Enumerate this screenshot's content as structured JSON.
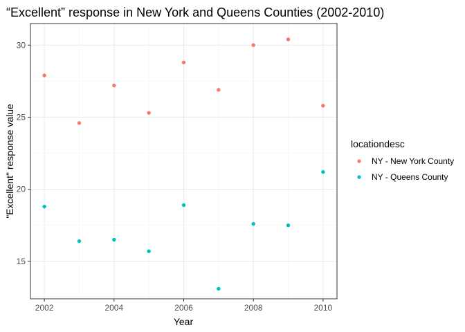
{
  "chart_data": {
    "type": "scatter",
    "title": "“Excellent” response in New York and Queens Counties (2002-2010)",
    "xlabel": "Year",
    "ylabel": "\"Excellent\" response value",
    "xlim": [
      2001.6,
      2010.4
    ],
    "ylim": [
      12.4,
      31.5
    ],
    "x_ticks": [
      2002,
      2004,
      2006,
      2008,
      2010
    ],
    "y_ticks": [
      15,
      20,
      25,
      30
    ],
    "grid": true,
    "legend": {
      "title": "locationdesc",
      "placement": "right"
    },
    "series": [
      {
        "name": "NY - New York County",
        "color": "#F8766D",
        "points": [
          {
            "x": 2002,
            "y": 27.9
          },
          {
            "x": 2003,
            "y": 24.6
          },
          {
            "x": 2004,
            "y": 27.2
          },
          {
            "x": 2005,
            "y": 25.3
          },
          {
            "x": 2006,
            "y": 28.8
          },
          {
            "x": 2007,
            "y": 26.9
          },
          {
            "x": 2008,
            "y": 30.0
          },
          {
            "x": 2009,
            "y": 30.4
          },
          {
            "x": 2010,
            "y": 25.8
          }
        ]
      },
      {
        "name": "NY - Queens County",
        "color": "#00BFC4",
        "points": [
          {
            "x": 2002,
            "y": 18.8
          },
          {
            "x": 2003,
            "y": 16.4
          },
          {
            "x": 2004,
            "y": 16.5
          },
          {
            "x": 2005,
            "y": 15.7
          },
          {
            "x": 2006,
            "y": 18.9
          },
          {
            "x": 2007,
            "y": 13.1
          },
          {
            "x": 2008,
            "y": 17.6
          },
          {
            "x": 2009,
            "y": 17.5
          },
          {
            "x": 2010,
            "y": 21.2
          }
        ]
      }
    ]
  }
}
